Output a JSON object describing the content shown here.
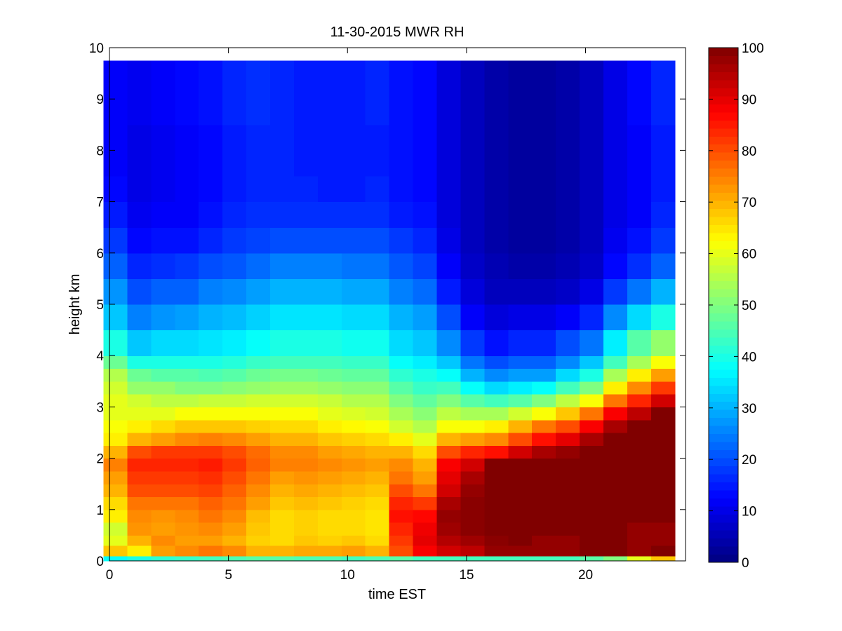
{
  "chart_data": {
    "type": "heatmap",
    "title": "11-30-2015 MWR RH",
    "xlabel": "time EST",
    "ylabel": "height km",
    "xlim": [
      0,
      24.2
    ],
    "ylim": [
      0,
      10
    ],
    "x_ticks": [
      0,
      5,
      10,
      15,
      20
    ],
    "y_ticks": [
      0,
      1,
      2,
      3,
      4,
      5,
      6,
      7,
      8,
      9,
      10
    ],
    "x": [
      0.25,
      1.25,
      2.25,
      3.25,
      4.25,
      5.25,
      6.25,
      7.25,
      8.25,
      9.25,
      10.25,
      11.25,
      12.25,
      13.25,
      14.25,
      15.25,
      16.25,
      17.25,
      18.25,
      19.25,
      20.25,
      21.25,
      22.25,
      23.25
    ],
    "x_cell_width": 1.0,
    "y_edges": [
      0,
      0.1,
      0.3,
      0.5,
      0.75,
      1.0,
      1.25,
      1.5,
      1.75,
      2.0,
      2.25,
      2.5,
      2.75,
      3.0,
      3.25,
      3.5,
      3.75,
      4.0,
      4.5,
      5.0,
      5.5,
      6.0,
      6.5,
      7.0,
      7.5,
      8.0,
      8.5,
      9.0,
      9.75
    ],
    "z": [
      [
        38,
        68,
        60,
        58,
        64,
        66,
        70,
        72,
        75,
        70,
        64,
        62,
        60,
        60,
        58,
        55,
        48,
        40,
        32,
        27,
        22,
        18,
        15,
        13,
        12,
        12,
        12,
        12
      ],
      [
        40,
        64,
        70,
        73,
        74,
        76,
        80,
        82,
        84,
        80,
        70,
        64,
        60,
        58,
        52,
        48,
        40,
        32,
        25,
        20,
        16,
        13,
        11,
        10,
        10,
        10,
        11,
        11
      ],
      [
        42,
        72,
        74,
        72,
        73,
        76,
        80,
        82,
        84,
        82,
        72,
        66,
        60,
        56,
        52,
        46,
        40,
        34,
        27,
        22,
        17,
        14,
        12,
        11,
        11,
        11,
        12,
        12
      ],
      [
        43,
        74,
        72,
        73,
        74,
        76,
        80,
        82,
        84,
        82,
        74,
        68,
        62,
        56,
        50,
        46,
        40,
        34,
        28,
        22,
        18,
        14,
        12,
        12,
        12,
        12,
        13,
        13
      ],
      [
        44,
        76,
        72,
        74,
        76,
        78,
        81,
        83,
        85,
        82,
        75,
        68,
        62,
        57,
        50,
        45,
        40,
        35,
        30,
        25,
        20,
        16,
        14,
        13,
        13,
        13,
        14,
        14
      ],
      [
        45,
        74,
        70,
        72,
        74,
        76,
        78,
        80,
        82,
        80,
        74,
        68,
        62,
        57,
        51,
        46,
        41,
        36,
        31,
        26,
        21,
        18,
        16,
        15,
        15,
        15,
        16,
        16
      ],
      [
        46,
        70,
        67,
        68,
        69,
        72,
        74,
        76,
        78,
        77,
        72,
        67,
        62,
        58,
        52,
        48,
        43,
        38,
        33,
        28,
        23,
        19,
        17,
        16,
        16,
        16,
        17,
        17
      ],
      [
        46,
        70,
        66,
        66,
        66,
        68,
        70,
        72,
        75,
        74,
        70,
        66,
        62,
        58,
        53,
        49,
        44,
        40,
        35,
        30,
        25,
        20,
        17,
        16,
        16,
        16,
        16,
        16
      ],
      [
        45,
        71,
        68,
        67,
        67,
        69,
        71,
        73,
        75,
        74,
        70,
        66,
        62,
        58,
        53,
        49,
        44,
        40,
        35,
        30,
        25,
        20,
        17,
        16,
        15,
        15,
        15,
        15
      ],
      [
        45,
        71,
        67,
        66,
        66,
        68,
        70,
        72,
        74,
        72,
        68,
        64,
        60,
        57,
        52,
        48,
        44,
        40,
        35,
        30,
        25,
        20,
        17,
        15,
        15,
        15,
        15,
        15
      ],
      [
        44,
        72,
        68,
        66,
        66,
        67,
        69,
        71,
        73,
        71,
        67,
        63,
        59,
        55,
        51,
        47,
        43,
        39,
        34,
        29,
        24,
        20,
        17,
        15,
        15,
        15,
        15,
        15
      ],
      [
        45,
        70,
        66,
        65,
        65,
        66,
        68,
        70,
        72,
        70,
        66,
        62,
        58,
        55,
        51,
        47,
        43,
        39,
        34,
        29,
        24,
        20,
        17,
        16,
        15,
        15,
        16,
        16
      ],
      [
        46,
        80,
        82,
        84,
        86,
        84,
        80,
        76,
        74,
        70,
        64,
        58,
        54,
        50,
        46,
        42,
        38,
        34,
        30,
        25,
        21,
        18,
        15,
        14,
        14,
        14,
        14,
        14
      ],
      [
        44,
        88,
        90,
        89,
        87,
        82,
        76,
        72,
        70,
        66,
        60,
        55,
        51,
        47,
        43,
        40,
        36,
        32,
        28,
        23,
        19,
        16,
        14,
        13,
        13,
        13,
        13,
        13
      ],
      [
        44,
        92,
        95,
        97,
        98,
        96,
        92,
        90,
        88,
        80,
        70,
        62,
        56,
        50,
        44,
        38,
        32,
        26,
        20,
        15,
        12,
        10,
        9,
        9,
        9,
        9,
        9,
        9
      ],
      [
        44,
        94,
        97,
        99,
        99,
        99,
        98,
        96,
        92,
        84,
        72,
        62,
        54,
        46,
        38,
        30,
        24,
        18,
        12,
        9,
        7,
        6,
        6,
        6,
        6,
        6,
        6,
        6
      ],
      [
        44,
        98,
        99,
        100,
        100,
        100,
        100,
        100,
        100,
        86,
        74,
        64,
        54,
        44,
        34,
        26,
        20,
        14,
        9,
        6,
        5,
        4,
        4,
        4,
        4,
        4,
        4,
        4
      ],
      [
        44,
        98,
        100,
        100,
        100,
        100,
        100,
        100,
        100,
        92,
        80,
        70,
        58,
        46,
        36,
        28,
        22,
        16,
        10,
        6,
        4,
        3,
        3,
        3,
        3,
        3,
        3,
        3
      ],
      [
        44,
        98,
        98,
        100,
        100,
        100,
        100,
        100,
        100,
        96,
        86,
        76,
        62,
        50,
        38,
        28,
        22,
        16,
        10,
        6,
        4,
        3,
        3,
        3,
        3,
        3,
        3,
        3
      ],
      [
        44,
        98,
        98,
        100,
        100,
        100,
        100,
        100,
        100,
        98,
        90,
        80,
        68,
        56,
        44,
        34,
        26,
        20,
        12,
        7,
        5,
        4,
        4,
        4,
        4,
        4,
        4,
        4
      ],
      [
        46,
        100,
        100,
        100,
        100,
        100,
        100,
        100,
        100,
        100,
        96,
        88,
        76,
        62,
        50,
        40,
        32,
        24,
        16,
        10,
        7,
        6,
        6,
        6,
        6,
        6,
        6,
        6
      ],
      [
        50,
        100,
        100,
        100,
        100,
        100,
        100,
        100,
        100,
        100,
        100,
        96,
        88,
        76,
        64,
        54,
        44,
        36,
        26,
        18,
        13,
        11,
        10,
        10,
        10,
        10,
        10,
        10
      ],
      [
        60,
        98,
        98,
        98,
        100,
        100,
        100,
        100,
        100,
        100,
        100,
        100,
        94,
        84,
        74,
        64,
        54,
        46,
        34,
        24,
        17,
        14,
        12,
        12,
        12,
        12,
        13,
        13
      ],
      [
        68,
        100,
        98,
        98,
        100,
        100,
        100,
        100,
        100,
        100,
        100,
        100,
        100,
        92,
        82,
        72,
        62,
        52,
        40,
        30,
        22,
        18,
        16,
        15,
        15,
        15,
        16,
        16
      ]
    ],
    "colorbar": {
      "colormap": "jet",
      "range": [
        0,
        100
      ],
      "ticks": [
        0,
        10,
        20,
        30,
        40,
        50,
        60,
        70,
        80,
        90,
        100
      ]
    },
    "grid": false
  }
}
